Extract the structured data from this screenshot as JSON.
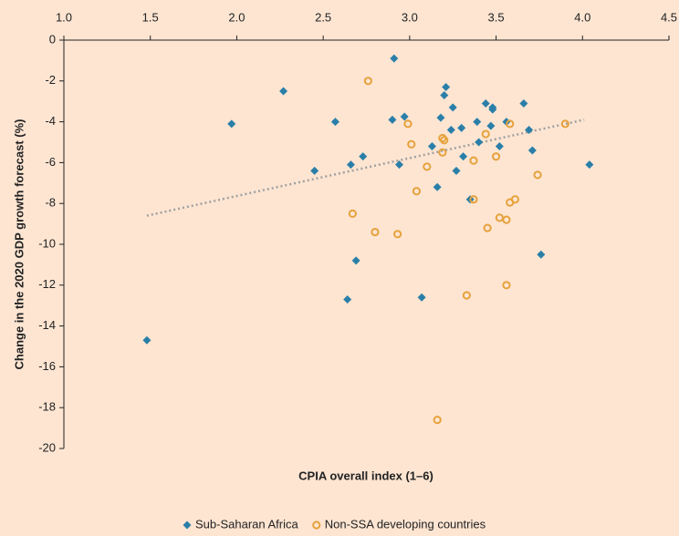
{
  "chart_data": {
    "type": "scatter",
    "x_label": "CPIA overall index (1–6)",
    "y_label": "Change in the 2020 GDP growth forecast (%)",
    "xlim": [
      1.0,
      4.5
    ],
    "xticks": [
      {
        "value": 1.0,
        "label": "1.0"
      },
      1.5,
      {
        "value": 2.0,
        "label": "2.0"
      },
      2.5,
      {
        "value": 3.0,
        "label": "3.0"
      },
      3.5,
      {
        "value": 4.0,
        "label": "4.0"
      },
      4.5
    ],
    "ylim": [
      -20,
      0
    ],
    "yticks": [
      0,
      -2,
      -4,
      -6,
      -8,
      -10,
      -12,
      -14,
      -16,
      -18,
      -20
    ],
    "legend": "bottom",
    "series": [
      {
        "name": "Sub-Saharan Africa",
        "color": "#2a7fa8",
        "marker": "diamond",
        "x": [
          1.48,
          1.97,
          2.27,
          2.45,
          2.57,
          2.73,
          2.66,
          2.69,
          2.64,
          2.91,
          2.9,
          2.97,
          2.94,
          3.07,
          3.16,
          3.13,
          3.18,
          3.21,
          3.2,
          3.25,
          3.24,
          3.3,
          3.27,
          3.31,
          3.35,
          3.39,
          3.4,
          3.44,
          3.47,
          3.48,
          3.48,
          3.52,
          3.56,
          3.66,
          3.69,
          3.71,
          3.76,
          4.04
        ],
        "values": [
          -14.7,
          -4.1,
          -2.5,
          -6.4,
          -4.0,
          -5.7,
          -6.1,
          -10.8,
          -12.7,
          -0.9,
          -3.9,
          -3.75,
          -6.1,
          -12.6,
          -7.2,
          -5.2,
          -3.8,
          -2.3,
          -2.7,
          -3.3,
          -4.4,
          -4.3,
          -6.4,
          -5.7,
          -7.8,
          -4.0,
          -5.0,
          -3.1,
          -4.2,
          -3.3,
          -3.4,
          -5.2,
          -4.0,
          -3.1,
          -4.4,
          -5.4,
          -10.5,
          -6.1
        ]
      },
      {
        "name": "Non-SSA developing countries",
        "color": "#e6a23c",
        "marker": "circle",
        "x": [
          2.76,
          2.99,
          3.01,
          3.04,
          2.67,
          2.8,
          2.93,
          3.1,
          3.19,
          3.2,
          3.19,
          3.16,
          3.37,
          3.37,
          3.44,
          3.45,
          3.33,
          3.5,
          3.52,
          3.56,
          3.56,
          3.58,
          3.58,
          3.61,
          3.74,
          3.9
        ],
        "values": [
          -2.0,
          -4.1,
          -5.1,
          -7.4,
          -8.5,
          -9.4,
          -9.5,
          -6.2,
          -4.8,
          -4.9,
          -5.5,
          -18.6,
          -5.9,
          -7.8,
          -4.6,
          -9.2,
          -12.5,
          -5.7,
          -8.7,
          -8.8,
          -12.0,
          -4.1,
          -7.95,
          -7.8,
          -6.6,
          -4.1
        ]
      }
    ],
    "trendline": {
      "color": "#a0a0a0",
      "x": [
        1.48,
        4.01
      ],
      "values": [
        -8.6,
        -3.9
      ]
    }
  }
}
